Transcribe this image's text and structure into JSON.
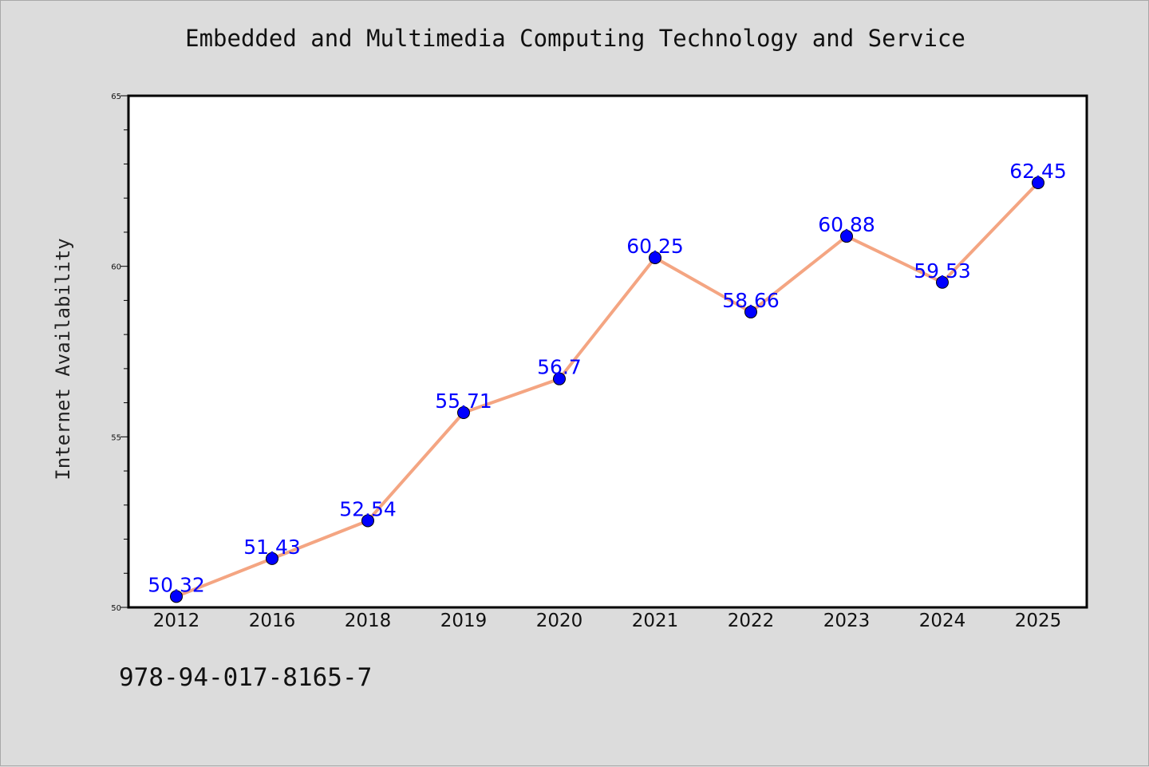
{
  "page": {
    "background": "#dcdcdc",
    "footer_text": "978-94-017-8165-7"
  },
  "chart_data": {
    "type": "line",
    "title": "Embedded and Multimedia Computing Technology and Service",
    "xlabel": "",
    "ylabel": "Internet Availability",
    "categories": [
      "2012",
      "2016",
      "2018",
      "2019",
      "2020",
      "2021",
      "2022",
      "2023",
      "2024",
      "2025"
    ],
    "series": [
      {
        "values": [
          50.32,
          51.43,
          52.54,
          55.71,
          56.7,
          60.25,
          58.66,
          60.88,
          59.53,
          62.45
        ],
        "data_labels": [
          "50.32",
          "51.43",
          "52.54",
          "55.71",
          "56.7",
          "60.25",
          "58.66",
          "60.88",
          "59.53",
          "62.45"
        ],
        "line_color": "#f4a582",
        "marker_color": "#0000ff",
        "label_color": "#0000ff"
      }
    ],
    "ylim": [
      50,
      65
    ],
    "yticks": [
      "50",
      "55",
      "60",
      "65"
    ],
    "grid": false,
    "legend": "none"
  }
}
